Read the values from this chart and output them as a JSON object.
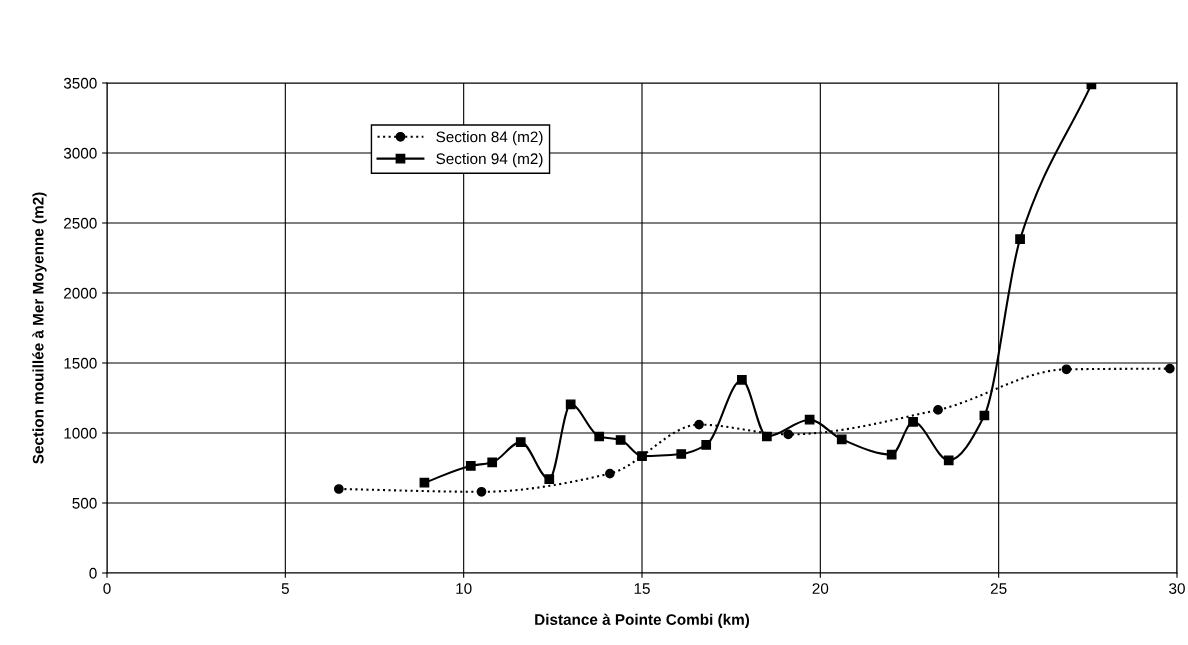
{
  "chart_data": {
    "type": "line",
    "xlabel": "Distance à Pointe Combi (km)",
    "ylabel": "Section mouillée à Mer Moyenne (m2)",
    "xlim": [
      0,
      30
    ],
    "xticks": [
      0,
      5,
      10,
      15,
      20,
      25,
      30
    ],
    "ylim": [
      0,
      3500
    ],
    "yticks": [
      0,
      500,
      1000,
      1500,
      2000,
      2500,
      3000,
      3500
    ],
    "grid": true,
    "legend": "top left",
    "series": [
      {
        "name": "Section 84 (m2)",
        "color": "#000000",
        "marker": "circle",
        "line_style": "dotted",
        "x": [
          6.5,
          10.5,
          14.1,
          16.6,
          19.1,
          23.3,
          26.9,
          29.8
        ],
        "values": [
          600,
          580,
          710,
          1060,
          990,
          1165,
          1455,
          1460
        ]
      },
      {
        "name": "Section 94 (m2)",
        "color": "#000000",
        "marker": "square",
        "line_style": "solid",
        "x": [
          8.9,
          10.2,
          10.8,
          11.6,
          12.4,
          13.0,
          13.8,
          14.4,
          15.0,
          16.1,
          16.8,
          17.8,
          18.5,
          19.7,
          20.6,
          22.0,
          22.6,
          23.6,
          24.6,
          25.6,
          27.6
        ],
        "values": [
          645,
          765,
          790,
          935,
          670,
          1205,
          975,
          950,
          835,
          850,
          915,
          1380,
          975,
          1095,
          955,
          845,
          1080,
          805,
          1125,
          2385,
          3490
        ]
      }
    ]
  }
}
